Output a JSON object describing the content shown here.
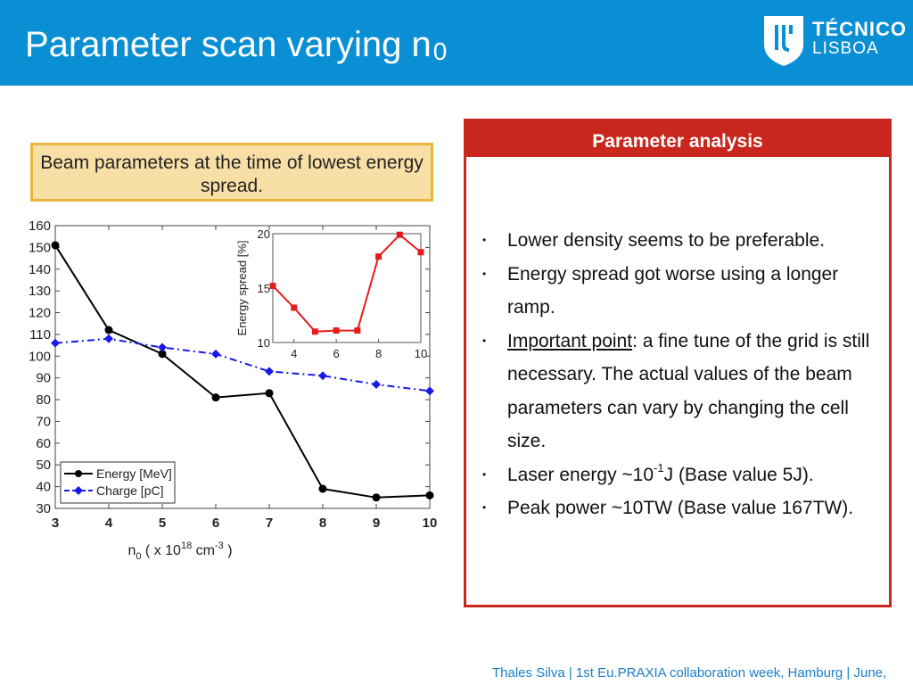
{
  "header": {
    "title": "Parameter scan varying n",
    "title_sub": "0",
    "bg_color": "#0a8fd4",
    "logo": {
      "line1": "TÉCNICO",
      "line2": "LISBOA"
    }
  },
  "caption": "Beam parameters at the time of lowest energy spread.",
  "chart_data": [
    {
      "type": "line",
      "xlabel": "n0 ( x 10^18 cm^-3 )",
      "x": [
        3,
        4,
        5,
        6,
        7,
        8,
        9,
        10
      ],
      "xlim": [
        3,
        10
      ],
      "ylim": [
        30,
        160
      ],
      "yticks": [
        30,
        40,
        50,
        60,
        70,
        80,
        90,
        100,
        110,
        120,
        130,
        140,
        150,
        160
      ],
      "xticks": [
        3,
        4,
        5,
        6,
        7,
        8,
        9,
        10
      ],
      "legend_position": "bottom-left",
      "series": [
        {
          "name": "Energy [MeV]",
          "color": "#000000",
          "values": [
            151,
            112,
            101,
            81,
            83,
            39,
            35,
            36
          ]
        },
        {
          "name": "Charge [pC]",
          "color": "#1a1ae6",
          "values": [
            106,
            108,
            104,
            101,
            93,
            91,
            87,
            84
          ]
        }
      ]
    },
    {
      "type": "line",
      "ylabel": "Energy spread [%]",
      "x": [
        3,
        4,
        5,
        6,
        7,
        8,
        9,
        10
      ],
      "xlim": [
        3,
        10
      ],
      "ylim": [
        10,
        20
      ],
      "yticks": [
        10,
        15,
        20
      ],
      "xticks": [
        4,
        6,
        8,
        10
      ],
      "series": [
        {
          "color": "#e51c1c",
          "values": [
            15.2,
            13.2,
            11.0,
            11.1,
            11.1,
            17.9,
            19.9,
            18.3
          ]
        }
      ]
    }
  ],
  "panel": {
    "title": "Parameter analysis",
    "accent_color": "#c9261d",
    "bullet1": "Lower density seems to be preferable.",
    "bullet2": "Energy spread got worse using a longer ramp.",
    "bullet3_lead": "Important point",
    "bullet3_rest": ": a fine tune of the grid is still necessary.  The actual values of the beam parameters can vary by changing the cell size.",
    "bullet4_a": "Laser energy ~10",
    "bullet4_exp": "-1",
    "bullet4_b": "J (Base value 5J).",
    "bullet5": "Peak power ~10TW (Base value 167TW)."
  },
  "footer": "Thales Silva | 1st Eu.PRAXIA collaboration week, Hamburg | June,"
}
